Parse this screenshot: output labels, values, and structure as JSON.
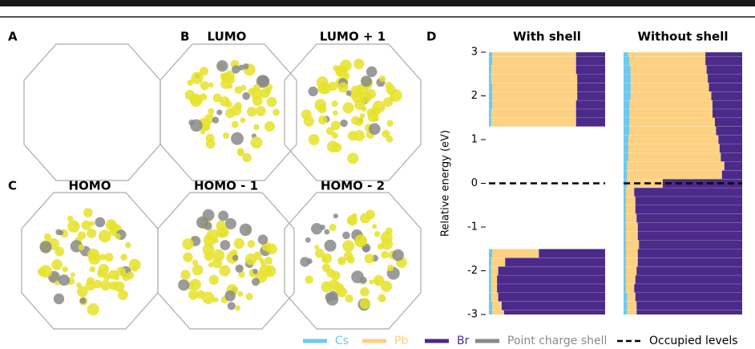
{
  "figure": {
    "panel_labels": [
      "A",
      "B",
      "C",
      "D"
    ],
    "orbital_titles": [
      "LUMO",
      "LUMO + 1",
      "HOMO",
      "HOMO - 1",
      "HOMO - 2"
    ]
  },
  "chart_data": {
    "type": "stacked-levels",
    "ylabel": "Relative energy (eV)",
    "ylim": [
      -3,
      3
    ],
    "yticks": [
      -3,
      -2,
      -1,
      0,
      1,
      2,
      3
    ],
    "occupied_level": 0,
    "series": [
      {
        "name": "Cs",
        "color": "#6cc9ef"
      },
      {
        "name": "Pb",
        "color": "#fcd182"
      },
      {
        "name": "Br",
        "color": "#4b2a8a"
      }
    ],
    "legend_extra": [
      {
        "name": "Point charge shell",
        "color": "#8a8a8a"
      },
      {
        "name": "Occupied levels",
        "color": "#000000"
      }
    ],
    "subplots": [
      {
        "title": "With shell",
        "energies": [
          -3.0,
          -2.8,
          -2.6,
          -2.4,
          -2.2,
          -2.0,
          -1.8,
          -1.6,
          1.4,
          1.6,
          1.8,
          2.0,
          2.2,
          2.4,
          2.6,
          2.8,
          3.0
        ],
        "cs": [
          3,
          3,
          2,
          2,
          2,
          2,
          2,
          3,
          2,
          2,
          3,
          3,
          3,
          2,
          2,
          3,
          3
        ],
        "pb": [
          10,
          8,
          6,
          5,
          5,
          6,
          12,
          40,
          73,
          73,
          72,
          73,
          73,
          74,
          73,
          72,
          72
        ],
        "br": [
          87,
          89,
          92,
          93,
          93,
          92,
          86,
          57,
          25,
          25,
          25,
          24,
          24,
          24,
          25,
          25,
          25
        ]
      },
      {
        "title": "Without shell",
        "energies": [
          -3.0,
          -2.8,
          -2.6,
          -2.4,
          -2.2,
          -2.0,
          -1.8,
          -1.6,
          -1.4,
          -1.2,
          -1.0,
          -0.8,
          -0.6,
          -0.4,
          -0.2,
          0.0,
          0.2,
          0.4,
          0.6,
          0.8,
          1.0,
          1.2,
          1.4,
          1.6,
          1.8,
          2.0,
          2.2,
          2.4,
          2.6,
          2.8,
          3.0
        ],
        "cs": [
          3,
          3,
          3,
          2,
          2,
          2,
          2,
          2,
          2,
          2,
          2,
          2,
          2,
          2,
          2,
          3,
          3,
          3,
          4,
          4,
          4,
          5,
          5,
          5,
          5,
          6,
          6,
          6,
          6,
          5,
          4
        ],
        "pb": [
          8,
          8,
          7,
          7,
          8,
          9,
          10,
          10,
          11,
          10,
          10,
          9,
          8,
          8,
          7,
          30,
          80,
          82,
          78,
          77,
          76,
          73,
          72,
          70,
          70,
          68,
          66,
          65,
          64,
          64,
          65
        ],
        "br": [
          89,
          89,
          90,
          91,
          90,
          89,
          88,
          88,
          87,
          88,
          88,
          89,
          90,
          90,
          91,
          67,
          17,
          15,
          18,
          19,
          20,
          22,
          23,
          25,
          25,
          26,
          28,
          29,
          30,
          31,
          31
        ]
      }
    ]
  }
}
